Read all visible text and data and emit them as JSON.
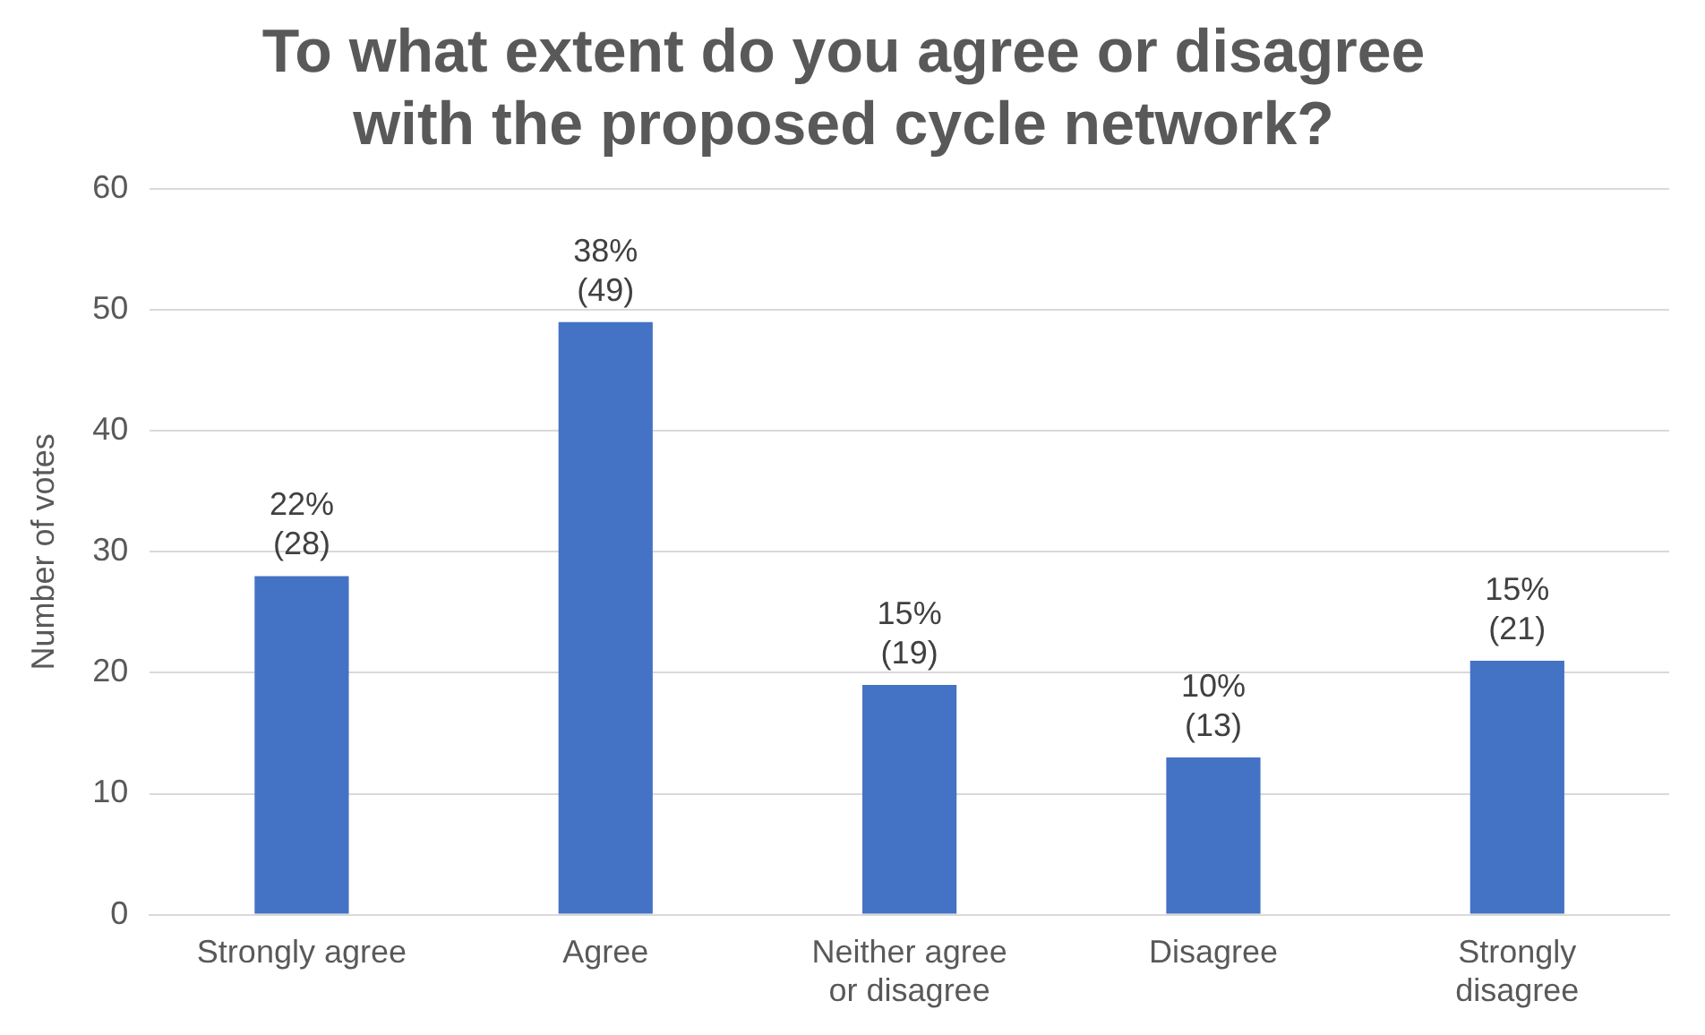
{
  "chart_data": {
    "type": "bar",
    "title": "To what extent do you agree or disagree with the proposed cycle network?",
    "ylabel": "Number of votes",
    "categories": [
      "Strongly agree",
      "Agree",
      "Neither agree or disagree",
      "Disagree",
      "Strongly disagree"
    ],
    "values": [
      28,
      49,
      19,
      13,
      21
    ],
    "value_labels": [
      "22% (28)",
      "38% (49)",
      "15% (19)",
      "10% (13)",
      "15% (21)"
    ],
    "color": "#4472c4",
    "ylim": [
      0,
      60
    ],
    "yticks": [
      0,
      10,
      20,
      30,
      40,
      50,
      60
    ],
    "grid": "y",
    "legend": false
  }
}
